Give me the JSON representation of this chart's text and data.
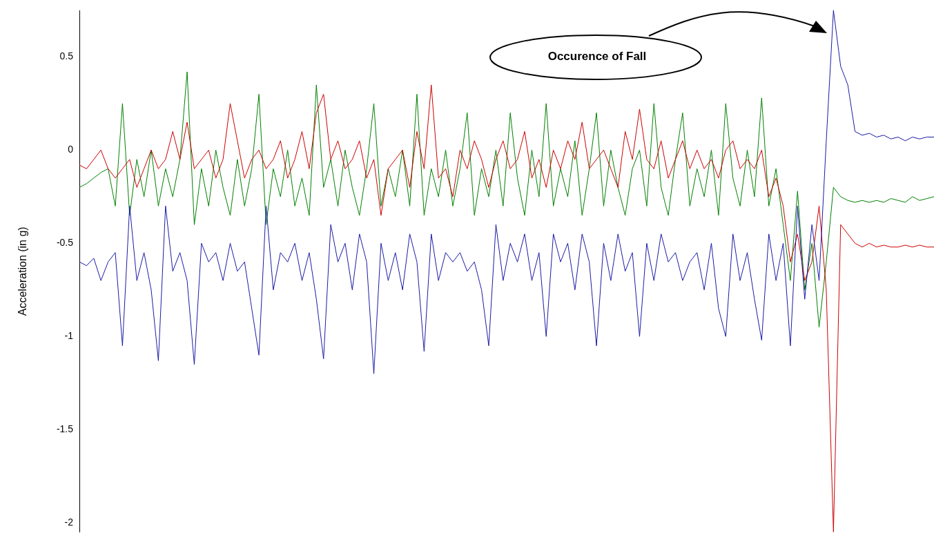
{
  "chart_data": {
    "type": "line",
    "ylabel": "Acceleration (in g)",
    "categories": [
      null,
      null,
      null,
      null,
      null,
      null,
      null,
      null,
      null,
      null,
      null,
      null,
      null,
      null,
      null,
      null,
      null,
      null,
      null,
      null,
      null,
      null,
      null,
      null,
      null,
      null,
      null,
      null,
      null,
      null,
      null,
      null,
      null,
      null,
      null,
      null,
      null,
      null,
      null,
      null,
      null,
      null,
      null,
      null,
      null,
      null,
      null,
      null,
      null,
      null,
      null,
      null,
      null,
      null,
      null,
      null,
      null,
      null,
      null,
      null,
      null,
      null,
      null,
      null,
      null,
      null,
      null,
      null,
      null,
      null,
      null,
      null,
      null,
      null,
      null,
      null,
      null,
      null,
      null,
      null,
      null,
      null,
      null,
      null,
      null,
      null,
      null,
      null,
      null,
      null,
      null,
      null,
      null,
      null,
      null,
      null,
      null,
      null,
      null,
      null,
      null,
      null,
      null,
      null,
      null,
      null,
      null,
      null,
      null,
      null,
      null,
      null,
      null,
      null,
      null,
      null,
      null,
      null,
      null,
      null
    ],
    "series": [
      {
        "color": "#1a1aa6",
        "values": [
          -0.6,
          -0.62,
          -0.58,
          -0.7,
          -0.6,
          -0.55,
          -1.05,
          -0.3,
          -0.7,
          -0.55,
          -0.75,
          -1.13,
          -0.3,
          -0.65,
          -0.55,
          -0.7,
          -1.15,
          -0.5,
          -0.6,
          -0.55,
          -0.7,
          -0.5,
          -0.65,
          -0.6,
          -0.85,
          -1.1,
          -0.3,
          -0.75,
          -0.55,
          -0.6,
          -0.5,
          -0.7,
          -0.55,
          -0.8,
          -1.12,
          -0.4,
          -0.6,
          -0.5,
          -0.75,
          -0.45,
          -0.6,
          -1.2,
          -0.5,
          -0.7,
          -0.55,
          -0.75,
          -0.45,
          -0.6,
          -1.08,
          -0.45,
          -0.7,
          -0.55,
          -0.6,
          -0.55,
          -0.65,
          -0.6,
          -0.75,
          -1.05,
          -0.4,
          -0.7,
          -0.5,
          -0.6,
          -0.45,
          -0.7,
          -0.55,
          -1.0,
          -0.45,
          -0.6,
          -0.5,
          -0.75,
          -0.45,
          -0.6,
          -1.05,
          -0.5,
          -0.7,
          -0.45,
          -0.65,
          -0.55,
          -1.0,
          -0.5,
          -0.7,
          -0.45,
          -0.6,
          -0.55,
          -0.7,
          -0.6,
          -0.55,
          -0.75,
          -0.5,
          -0.85,
          -1.0,
          -0.45,
          -0.7,
          -0.55,
          -0.8,
          -1.02,
          -0.45,
          -0.7,
          -0.5,
          -1.05,
          -0.3,
          -0.8,
          -0.4,
          -0.7,
          0.05,
          0.75,
          0.45,
          0.35,
          0.1,
          0.08,
          0.09,
          0.07,
          0.08,
          0.06,
          0.07,
          0.05,
          0.07,
          0.06,
          0.07,
          0.07
        ]
      },
      {
        "color": "#cc0000",
        "values": [
          -0.08,
          -0.1,
          -0.05,
          0.0,
          -0.1,
          -0.15,
          -0.1,
          -0.05,
          -0.2,
          -0.1,
          0.0,
          -0.1,
          -0.05,
          0.1,
          -0.05,
          0.15,
          -0.1,
          -0.05,
          0.0,
          -0.15,
          -0.05,
          0.25,
          0.05,
          -0.15,
          -0.05,
          0.0,
          -0.1,
          -0.05,
          0.05,
          -0.15,
          -0.05,
          0.1,
          -0.1,
          0.2,
          0.3,
          -0.05,
          0.05,
          -0.1,
          -0.05,
          0.05,
          -0.15,
          -0.05,
          -0.35,
          -0.1,
          -0.05,
          0.0,
          -0.2,
          0.1,
          -0.1,
          0.35,
          -0.15,
          -0.1,
          -0.25,
          0.0,
          -0.1,
          0.05,
          -0.05,
          -0.2,
          -0.05,
          0.05,
          -0.1,
          -0.05,
          0.1,
          -0.15,
          -0.05,
          -0.2,
          0.0,
          -0.1,
          0.05,
          -0.05,
          0.15,
          -0.1,
          -0.05,
          0.0,
          -0.1,
          -0.2,
          0.1,
          -0.05,
          0.22,
          -0.05,
          -0.1,
          0.05,
          -0.15,
          -0.05,
          0.05,
          -0.1,
          0.0,
          -0.1,
          -0.05,
          -0.15,
          0.0,
          0.05,
          -0.1,
          -0.05,
          -0.1,
          0.0,
          -0.25,
          -0.15,
          -0.3,
          -0.6,
          -0.45,
          -0.7,
          -0.6,
          -0.3,
          -0.75,
          -2.05,
          -0.4,
          -0.45,
          -0.5,
          -0.52,
          -0.5,
          -0.52,
          -0.51,
          -0.52,
          -0.52,
          -0.51,
          -0.52,
          -0.51,
          -0.52,
          -0.52
        ]
      },
      {
        "color": "#008000",
        "values": [
          -0.2,
          -0.18,
          -0.15,
          -0.12,
          -0.1,
          -0.3,
          0.25,
          -0.35,
          -0.05,
          -0.25,
          0.0,
          -0.3,
          -0.1,
          -0.25,
          -0.05,
          0.42,
          -0.4,
          -0.1,
          -0.3,
          0.0,
          -0.2,
          -0.35,
          -0.05,
          -0.3,
          -0.1,
          0.3,
          -0.4,
          -0.1,
          -0.25,
          0.0,
          -0.3,
          -0.15,
          -0.35,
          0.35,
          -0.2,
          -0.05,
          -0.3,
          0.0,
          -0.2,
          -0.35,
          -0.1,
          0.25,
          -0.3,
          -0.1,
          -0.25,
          0.0,
          -0.3,
          0.3,
          -0.35,
          -0.1,
          -0.25,
          0.0,
          -0.3,
          -0.1,
          0.2,
          -0.35,
          -0.1,
          -0.25,
          0.0,
          -0.3,
          0.2,
          -0.15,
          -0.35,
          0.0,
          -0.25,
          0.25,
          -0.3,
          -0.1,
          -0.25,
          0.05,
          -0.35,
          -0.1,
          0.2,
          -0.3,
          0.0,
          -0.2,
          -0.35,
          -0.1,
          0.0,
          -0.3,
          0.25,
          -0.2,
          -0.35,
          -0.05,
          0.2,
          -0.3,
          -0.1,
          -0.25,
          0.0,
          -0.35,
          0.25,
          -0.15,
          -0.3,
          0.0,
          -0.25,
          0.28,
          -0.3,
          -0.1,
          -0.4,
          -0.7,
          -0.22,
          -0.75,
          -0.5,
          -0.95,
          -0.6,
          -0.2,
          -0.25,
          -0.27,
          -0.28,
          -0.27,
          -0.28,
          -0.27,
          -0.28,
          -0.26,
          -0.27,
          -0.28,
          -0.25,
          -0.27,
          -0.26,
          -0.25
        ]
      }
    ],
    "ylim": [
      -2.05,
      0.75
    ],
    "yticks": [
      -2,
      -1.5,
      -1,
      -0.5,
      0,
      0.5
    ],
    "grid": false,
    "legend": false,
    "marker": "none",
    "line_style": "solid",
    "tick_labels": "y",
    "annotations": [
      "Occurence of Fall"
    ]
  }
}
